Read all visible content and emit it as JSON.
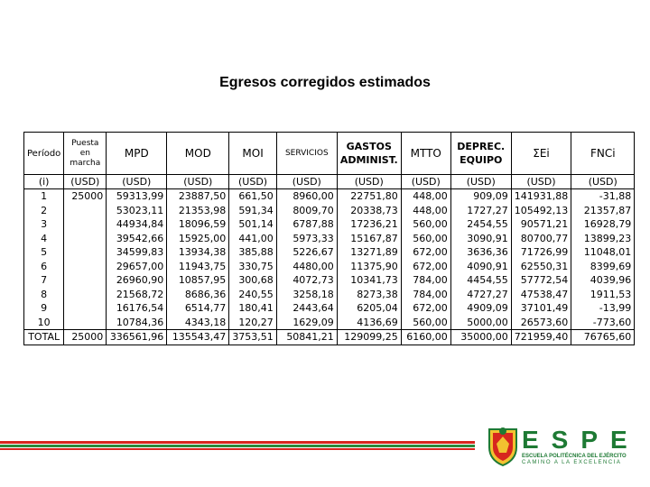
{
  "title": "Egresos corregidos estimados",
  "table": {
    "headers": {
      "periodo": "Período",
      "puesta_l1": "Puesta",
      "puesta_l2": "en",
      "puesta_l3": "marcha",
      "mpd": "MPD",
      "mod": "MOD",
      "moi": "MOI",
      "servicios": "SERVICIOS",
      "gastos_l1": "GASTOS",
      "gastos_l2": "ADMINIST.",
      "mtto": "MTTO",
      "deprec_l1": "DEPREC.",
      "deprec_l2": "EQUIPO",
      "sei": "ΣEi",
      "fnci": "FNCi"
    },
    "units": [
      "(i)",
      "(USD)",
      "(USD)",
      "(USD)",
      "(USD)",
      "(USD)",
      "(USD)",
      "(USD)",
      "(USD)",
      "(USD)",
      "(USD)"
    ],
    "rows": [
      [
        "1",
        "25000",
        "59313,99",
        "23887,50",
        "661,50",
        "8960,00",
        "22751,80",
        "448,00",
        "909,09",
        "141931,88",
        "-31,88"
      ],
      [
        "2",
        "",
        "53023,11",
        "21353,98",
        "591,34",
        "8009,70",
        "20338,73",
        "448,00",
        "1727,27",
        "105492,13",
        "21357,87"
      ],
      [
        "3",
        "",
        "44934,84",
        "18096,59",
        "501,14",
        "6787,88",
        "17236,21",
        "560,00",
        "2454,55",
        "90571,21",
        "16928,79"
      ],
      [
        "4",
        "",
        "39542,66",
        "15925,00",
        "441,00",
        "5973,33",
        "15167,87",
        "560,00",
        "3090,91",
        "80700,77",
        "13899,23"
      ],
      [
        "5",
        "",
        "34599,83",
        "13934,38",
        "385,88",
        "5226,67",
        "13271,89",
        "672,00",
        "3636,36",
        "71726,99",
        "11048,01"
      ],
      [
        "6",
        "",
        "29657,00",
        "11943,75",
        "330,75",
        "4480,00",
        "11375,90",
        "672,00",
        "4090,91",
        "62550,31",
        "8399,69"
      ],
      [
        "7",
        "",
        "26960,90",
        "10857,95",
        "300,68",
        "4072,73",
        "10341,73",
        "784,00",
        "4454,55",
        "57772,54",
        "4039,96"
      ],
      [
        "8",
        "",
        "21568,72",
        "8686,36",
        "240,55",
        "3258,18",
        "8273,38",
        "784,00",
        "4727,27",
        "47538,47",
        "1911,53"
      ],
      [
        "9",
        "",
        "16176,54",
        "6514,77",
        "180,41",
        "2443,64",
        "6205,04",
        "672,00",
        "4909,09",
        "37101,49",
        "-13,99"
      ],
      [
        "10",
        "",
        "10784,36",
        "4343,18",
        "120,27",
        "1629,09",
        "4136,69",
        "560,00",
        "5000,00",
        "26573,60",
        "-773,60"
      ]
    ],
    "total": [
      "TOTAL",
      "25000",
      "336561,96",
      "135543,47",
      "3753,51",
      "50841,21",
      "129099,25",
      "6160,00",
      "35000,00",
      "721959,40",
      "76765,60"
    ]
  },
  "footer": {
    "brand": "ESPE",
    "subtitle": "ESCUELA POLITÉCNICA DEL EJÉRCITO",
    "motto": "CAMINO A LA EXCELENCIA",
    "colors": {
      "red": "#d7261e",
      "green": "#2a8a3a",
      "brand_green": "#1e7a34"
    }
  }
}
